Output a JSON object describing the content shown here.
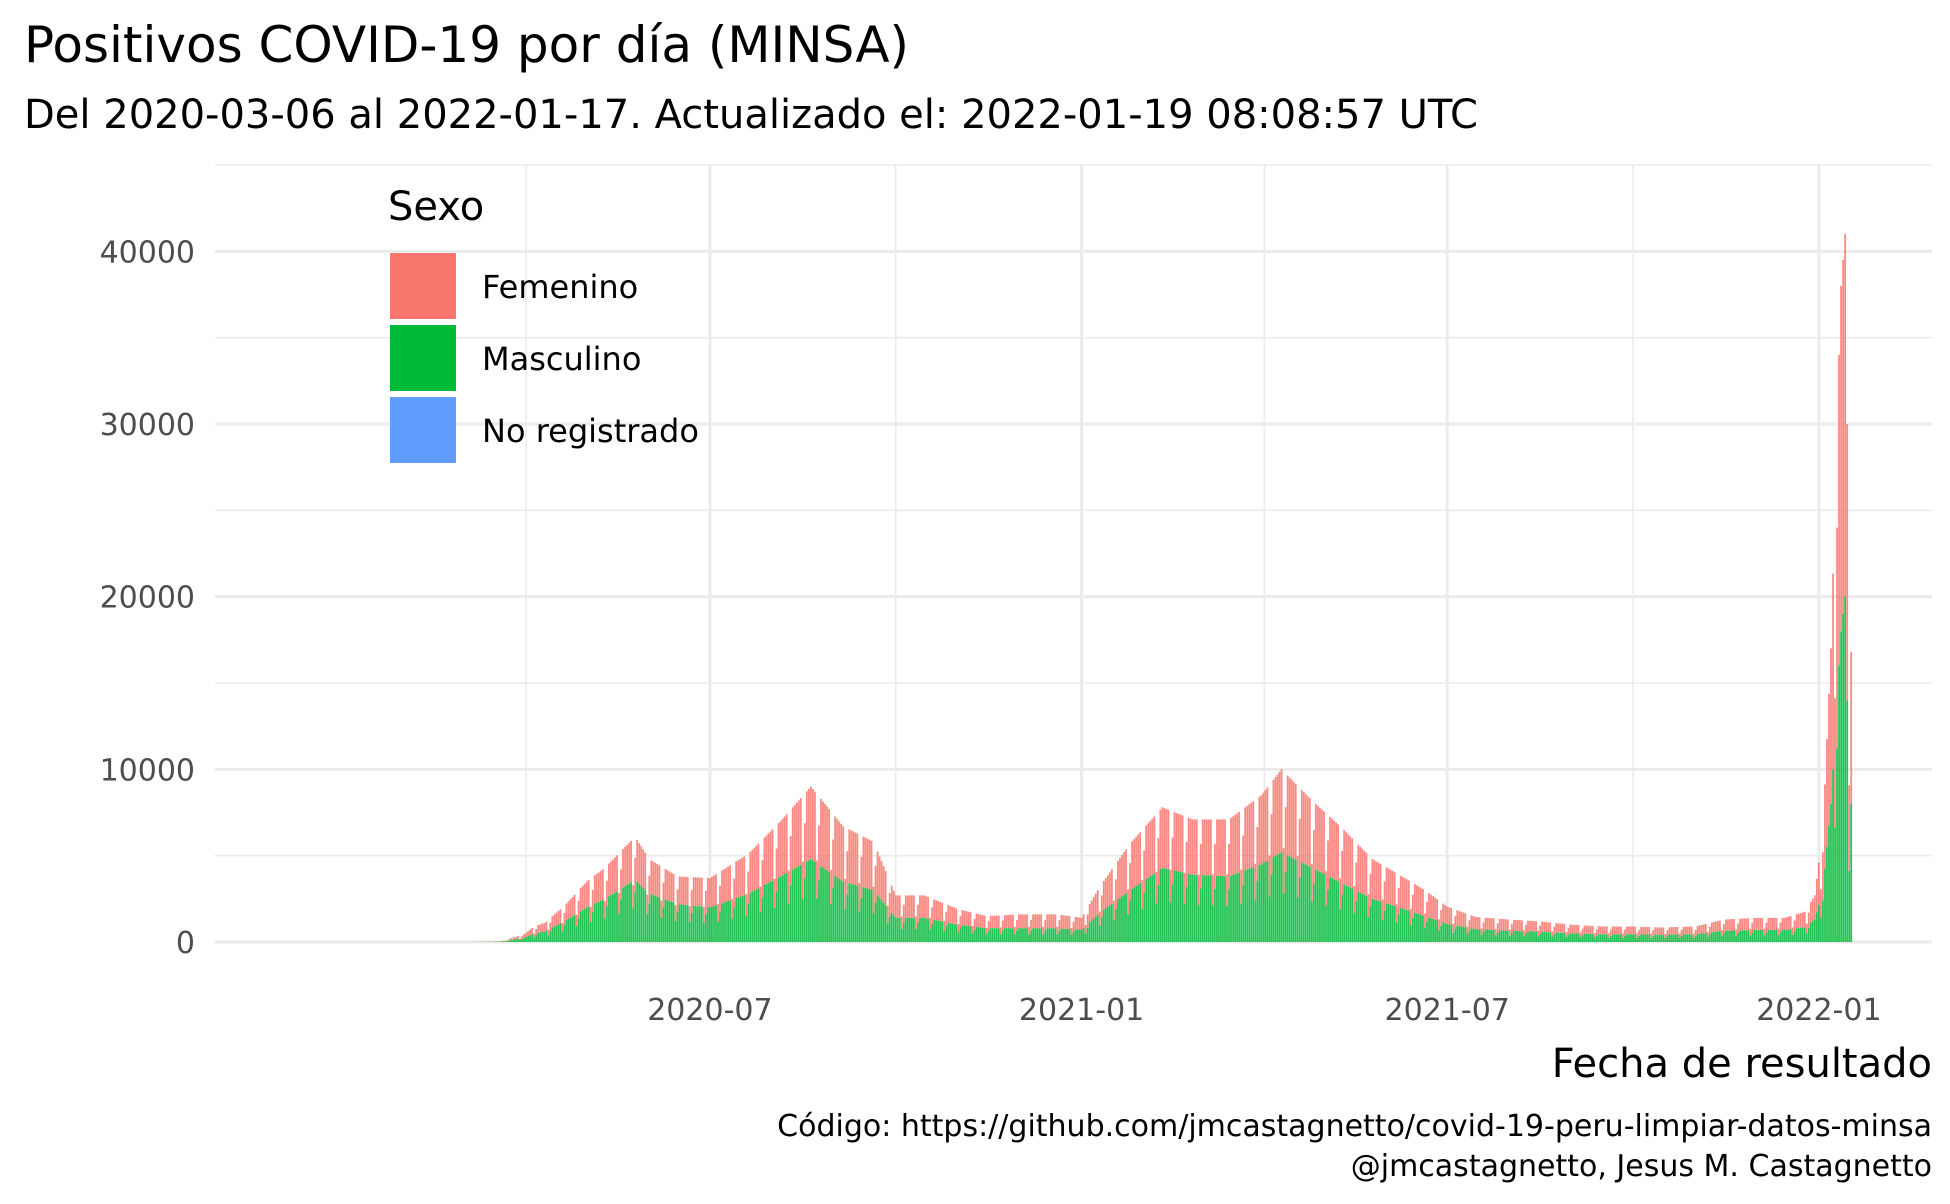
{
  "chart_data": {
    "type": "bar",
    "stacked": true,
    "title": "Positivos COVID-19 por día (MINSA)",
    "subtitle": "Del 2020-03-06 al 2022-01-17. Actualizado el: 2022-01-19 08:08:57 UTC",
    "xlabel": "Fecha de resultado",
    "ylabel": "",
    "caption_line1": "Código: https://github.com/jmcastagnetto/covid-19-peru-limpiar-datos-minsa",
    "caption_line2": "@jmcastagnetto, Jesus M. Castagnetto",
    "x_range": [
      "2020-03-06",
      "2022-01-17"
    ],
    "ylim": [
      0,
      45000
    ],
    "y_ticks": [
      0,
      10000,
      20000,
      30000,
      40000
    ],
    "y_tick_labels": [
      "0",
      "10000",
      "20000",
      "30000",
      "40000"
    ],
    "x_ticks": [
      "2020-07-01",
      "2021-01-01",
      "2021-07-01",
      "2022-01-01"
    ],
    "x_tick_labels": [
      "2020-07",
      "2021-01",
      "2021-07",
      "2022-01"
    ],
    "grid": true,
    "legend": {
      "title": "Sexo",
      "position": "top-left",
      "items": [
        {
          "label": "Femenino",
          "color": "#F8766D"
        },
        {
          "label": "Masculino",
          "color": "#00BA38"
        },
        {
          "label": "No registrado",
          "color": "#619CFF"
        }
      ]
    },
    "series": [
      {
        "name": "Femenino",
        "color": "#F8766D",
        "points": [
          [
            "2020-03-06",
            5
          ],
          [
            "2020-03-20",
            20
          ],
          [
            "2020-03-31",
            200
          ],
          [
            "2020-04-05",
            400
          ],
          [
            "2020-04-10",
            500
          ],
          [
            "2020-04-20",
            900
          ],
          [
            "2020-05-01",
            1500
          ],
          [
            "2020-05-10",
            1800
          ],
          [
            "2020-05-25",
            2500
          ],
          [
            "2020-06-01",
            2000
          ],
          [
            "2020-06-15",
            1600
          ],
          [
            "2020-07-01",
            1700
          ],
          [
            "2020-07-20",
            2300
          ],
          [
            "2020-08-05",
            3200
          ],
          [
            "2020-08-20",
            4200
          ],
          [
            "2020-09-05",
            3200
          ],
          [
            "2020-09-20",
            2800
          ],
          [
            "2020-10-01",
            1300
          ],
          [
            "2020-10-15",
            1300
          ],
          [
            "2020-11-01",
            900
          ],
          [
            "2020-11-15",
            700
          ],
          [
            "2020-12-01",
            800
          ],
          [
            "2020-12-20",
            800
          ],
          [
            "2021-01-01",
            700
          ],
          [
            "2021-01-10",
            1500
          ],
          [
            "2021-01-25",
            2700
          ],
          [
            "2021-02-10",
            3500
          ],
          [
            "2021-02-25",
            3200
          ],
          [
            "2021-03-15",
            3300
          ],
          [
            "2021-03-31",
            4000
          ],
          [
            "2021-04-10",
            4800
          ],
          [
            "2021-04-25",
            3900
          ],
          [
            "2021-05-10",
            3200
          ],
          [
            "2021-05-25",
            2300
          ],
          [
            "2021-06-10",
            1800
          ],
          [
            "2021-06-20",
            1500
          ],
          [
            "2021-07-01",
            1000
          ],
          [
            "2021-07-15",
            700
          ],
          [
            "2021-08-01",
            650
          ],
          [
            "2021-08-15",
            600
          ],
          [
            "2021-09-01",
            500
          ],
          [
            "2021-09-15",
            450
          ],
          [
            "2021-10-01",
            450
          ],
          [
            "2021-10-15",
            420
          ],
          [
            "2021-11-01",
            450
          ],
          [
            "2021-11-15",
            650
          ],
          [
            "2021-12-01",
            700
          ],
          [
            "2021-12-15",
            700
          ],
          [
            "2021-12-25",
            900
          ],
          [
            "2021-12-30",
            1400
          ],
          [
            "2022-01-03",
            3500
          ],
          [
            "2022-01-07",
            9000
          ],
          [
            "2022-01-10",
            16000
          ],
          [
            "2022-01-12",
            20000
          ],
          [
            "2022-01-14",
            21000
          ],
          [
            "2022-01-15",
            16000
          ],
          [
            "2022-01-16",
            9000
          ],
          [
            "2022-01-17",
            11000
          ]
        ]
      },
      {
        "name": "Masculino",
        "color": "#00BA38",
        "points": [
          [
            "2020-03-06",
            5
          ],
          [
            "2020-03-20",
            25
          ],
          [
            "2020-03-31",
            250
          ],
          [
            "2020-04-05",
            500
          ],
          [
            "2020-04-10",
            600
          ],
          [
            "2020-04-20",
            1200
          ],
          [
            "2020-05-01",
            2000
          ],
          [
            "2020-05-10",
            2500
          ],
          [
            "2020-05-25",
            3600
          ],
          [
            "2020-06-01",
            2800
          ],
          [
            "2020-06-15",
            2200
          ],
          [
            "2020-07-01",
            2000
          ],
          [
            "2020-07-20",
            2800
          ],
          [
            "2020-08-05",
            3800
          ],
          [
            "2020-08-20",
            4800
          ],
          [
            "2020-09-05",
            3500
          ],
          [
            "2020-09-20",
            3000
          ],
          [
            "2020-10-01",
            1400
          ],
          [
            "2020-10-15",
            1400
          ],
          [
            "2020-11-01",
            1000
          ],
          [
            "2020-11-15",
            800
          ],
          [
            "2020-12-01",
            800
          ],
          [
            "2020-12-20",
            800
          ],
          [
            "2021-01-01",
            700
          ],
          [
            "2021-01-10",
            1700
          ],
          [
            "2021-01-25",
            3000
          ],
          [
            "2021-02-10",
            4300
          ],
          [
            "2021-02-25",
            3900
          ],
          [
            "2021-03-15",
            3800
          ],
          [
            "2021-03-31",
            4500
          ],
          [
            "2021-04-10",
            5200
          ],
          [
            "2021-04-25",
            4300
          ],
          [
            "2021-05-10",
            3400
          ],
          [
            "2021-05-25",
            2500
          ],
          [
            "2021-06-10",
            1900
          ],
          [
            "2021-06-20",
            1500
          ],
          [
            "2021-07-01",
            1050
          ],
          [
            "2021-07-15",
            750
          ],
          [
            "2021-08-01",
            650
          ],
          [
            "2021-08-15",
            600
          ],
          [
            "2021-09-01",
            500
          ],
          [
            "2021-09-15",
            450
          ],
          [
            "2021-10-01",
            450
          ],
          [
            "2021-10-15",
            420
          ],
          [
            "2021-11-01",
            450
          ],
          [
            "2021-11-15",
            650
          ],
          [
            "2021-12-01",
            700
          ],
          [
            "2021-12-15",
            700
          ],
          [
            "2021-12-25",
            850
          ],
          [
            "2021-12-30",
            1300
          ],
          [
            "2022-01-03",
            3000
          ],
          [
            "2022-01-07",
            8000
          ],
          [
            "2022-01-10",
            14000
          ],
          [
            "2022-01-12",
            18000
          ],
          [
            "2022-01-14",
            20000
          ],
          [
            "2022-01-15",
            14000
          ],
          [
            "2022-01-16",
            7500
          ],
          [
            "2022-01-17",
            10000
          ]
        ]
      }
    ]
  }
}
